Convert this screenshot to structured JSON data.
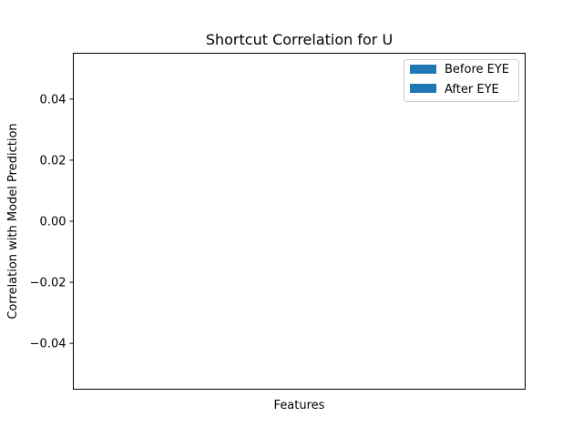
{
  "chart_data": {
    "type": "bar",
    "title": "Shortcut Correlation for U",
    "xlabel": "Features",
    "ylabel": "Correlation with Model Prediction",
    "categories": [],
    "series": [
      {
        "name": "Before EYE",
        "values": [],
        "color": "#1f77b4"
      },
      {
        "name": "After EYE",
        "values": [],
        "color": "#1f77b4"
      }
    ],
    "ylim": [
      -0.055,
      0.055
    ],
    "yticks": [
      0.04,
      0.02,
      0.0,
      -0.02,
      -0.04
    ],
    "ytick_labels": [
      "0.04",
      "0.02",
      "0.00",
      "−0.02",
      "−0.04"
    ],
    "grid": false,
    "legend_position": "top-right"
  }
}
